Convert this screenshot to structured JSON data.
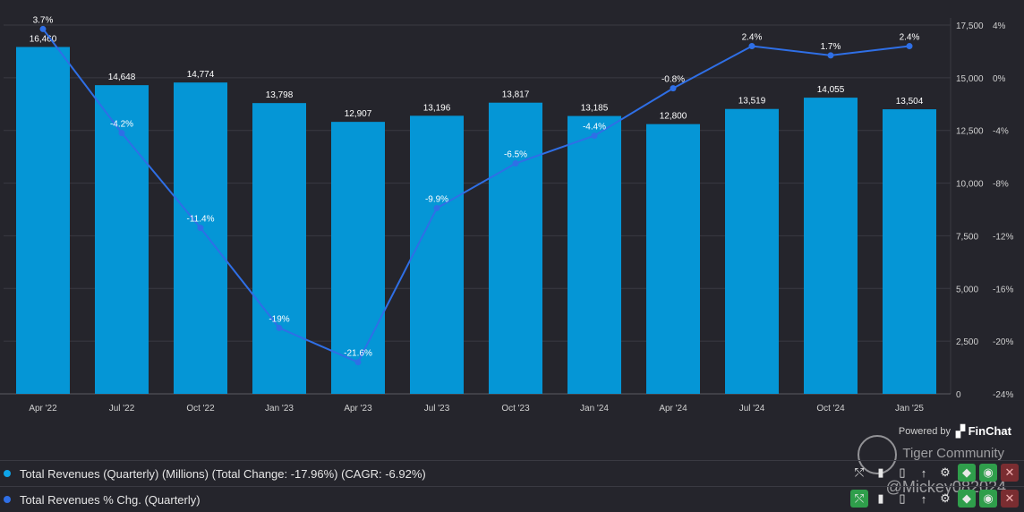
{
  "chart_data": {
    "type": "bar+line",
    "categories": [
      "Apr '22",
      "Jul '22",
      "Oct '22",
      "Jan '23",
      "Apr '23",
      "Jul '23",
      "Oct '23",
      "Jan '24",
      "Apr '24",
      "Jul '24",
      "Oct '24",
      "Jan '25"
    ],
    "series": [
      {
        "name": "Total Revenues (Quarterly) (Millions) (Total Change: -17.96%) (CAGR: -6.92%)",
        "type": "bar",
        "axis": "left",
        "values": [
          16460,
          14648,
          14774,
          13798,
          12907,
          13196,
          13817,
          13185,
          12800,
          13519,
          14055,
          13504
        ],
        "labels": [
          "16,460",
          "14,648",
          "14,774",
          "13,798",
          "12,907",
          "13,196",
          "13,817",
          "13,185",
          "12,800",
          "13,519",
          "14,055",
          "13,504"
        ]
      },
      {
        "name": "Total Revenues % Chg. (Quarterly)",
        "type": "line",
        "axis": "right",
        "values": [
          3.7,
          -4.2,
          -11.4,
          -19,
          -21.6,
          -9.9,
          -6.5,
          -4.4,
          -0.8,
          2.4,
          1.7,
          2.4
        ],
        "labels": [
          "3.7%",
          "-4.2%",
          "-11.4%",
          "-19%",
          "-21.6%",
          "-9.9%",
          "-6.5%",
          "-4.4%",
          "-0.8%",
          "2.4%",
          "1.7%",
          "2.4%"
        ]
      }
    ],
    "y_left": {
      "min": 0,
      "max": 17500,
      "ticks": [
        "0",
        "2,500",
        "5,000",
        "7,500",
        "10,000",
        "12,500",
        "15,000",
        "17,500"
      ]
    },
    "y_right": {
      "min": -24,
      "max": 4,
      "ticks": [
        "-24%",
        "-20%",
        "-16%",
        "-12%",
        "-8%",
        "-4%",
        "0%",
        "4%"
      ]
    },
    "colors": {
      "bar": "#0596d6",
      "line": "#2f6fe6",
      "background": "#25252c",
      "grid": "#3a3a42"
    }
  },
  "legend": [
    {
      "label": "Total Revenues (Quarterly) (Millions) (Total Change: -17.96%) (CAGR: -6.92%)",
      "color": "#0ea5e9"
    },
    {
      "label": "Total Revenues % Chg. (Quarterly)",
      "color": "#2f6fe6"
    }
  ],
  "powered_by": {
    "prefix": "Powered by",
    "brand": "FinChat"
  },
  "watermark": {
    "line1": "Tiger Community",
    "line2": "@Mickey082024"
  },
  "controls": {
    "row1": [
      "trend-icon",
      "bar-icon",
      "bar-small-icon",
      "sort-icon",
      "gear-icon",
      "tag-icon",
      "eye-icon",
      "close-icon"
    ],
    "row2": [
      "trend-icon",
      "bar-icon",
      "bar-small-icon",
      "sort-icon",
      "gear-icon",
      "tag-icon",
      "eye-icon",
      "close-icon"
    ]
  }
}
